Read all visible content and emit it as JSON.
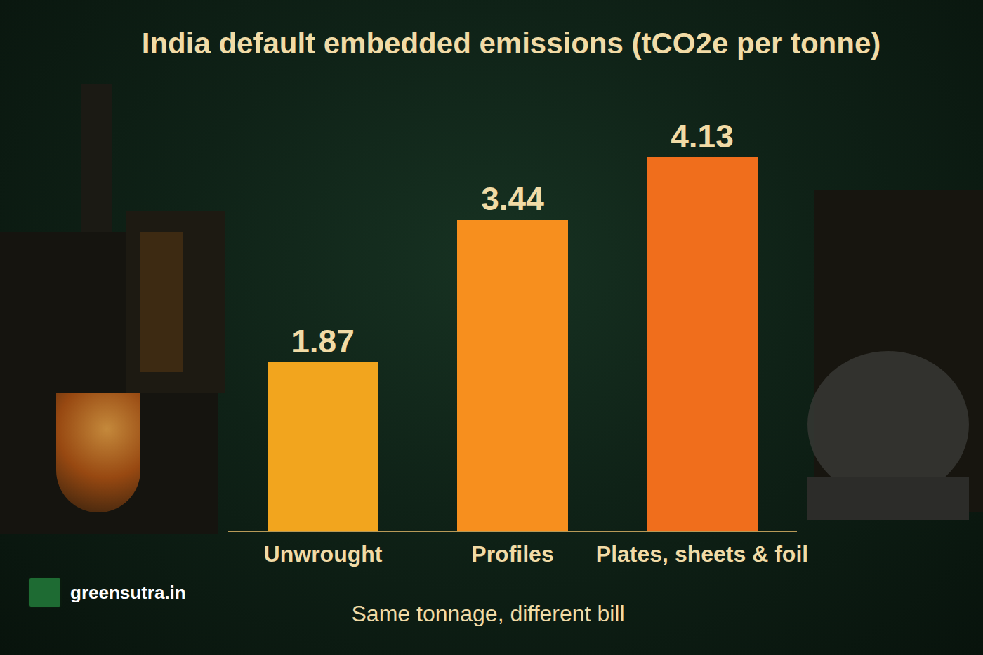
{
  "chart_data": {
    "type": "bar",
    "title": "India default embedded emissions (tCO2e per tonne)",
    "subtitle": "Same tonnage, different bill",
    "categories": [
      "Unwrought",
      "Profiles",
      "Plates, sheets & foil"
    ],
    "values": [
      1.87,
      3.44,
      4.13
    ],
    "colors": [
      "#f2a51e",
      "#f78f1e",
      "#f06e1c"
    ],
    "data_labels": true,
    "tick_labels": "x",
    "grid": false,
    "annotations": [
      "greensutra.in"
    ]
  }
}
